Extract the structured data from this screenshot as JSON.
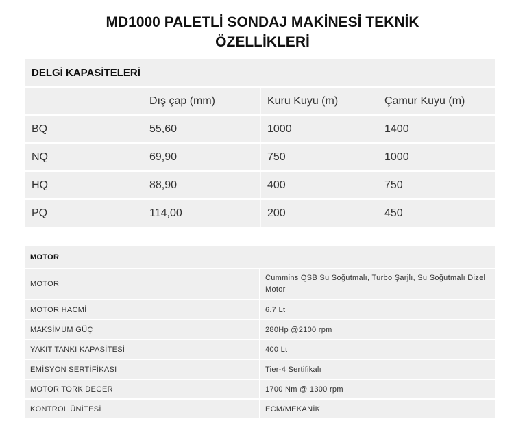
{
  "title_line1": "MD1000 PALETLİ SONDAJ MAKİNESİ TEKNİK",
  "title_line2": "ÖZELLİKLERİ",
  "drilling": {
    "heading": "DELGİ KAPASİTELERİ",
    "columns": [
      "",
      "Dış çap (mm)",
      "Kuru Kuyu (m)",
      "Çamur Kuyu (m)"
    ],
    "rows": [
      [
        "BQ",
        "55,60",
        "1000",
        "1400"
      ],
      [
        "NQ",
        "69,90",
        "750",
        "1000"
      ],
      [
        "HQ",
        "88,90",
        "400",
        "750"
      ],
      [
        "PQ",
        "114,00",
        "200",
        "450"
      ]
    ]
  },
  "motor": {
    "heading": "MOTOR",
    "rows": [
      [
        "MOTOR",
        "Cummins QSB Su Soğutmalı, Turbo Şarjlı, Su Soğutmalı Dizel Motor"
      ],
      [
        "MOTOR HACMİ",
        "6.7 Lt"
      ],
      [
        "MAKSİMUM GÜÇ",
        "280Hp  @2100 rpm"
      ],
      [
        "YAKIT TANKI KAPASİTESİ",
        "400 Lt"
      ],
      [
        "EMİSYON SERTİFİKASI",
        "Tier-4 Sertifikalı"
      ],
      [
        "MOTOR TORK DEGER",
        "1700 Nm  @ 1300 rpm"
      ],
      [
        "KONTROL ÜNİTESİ",
        "ECM/MEKANİK"
      ]
    ]
  }
}
